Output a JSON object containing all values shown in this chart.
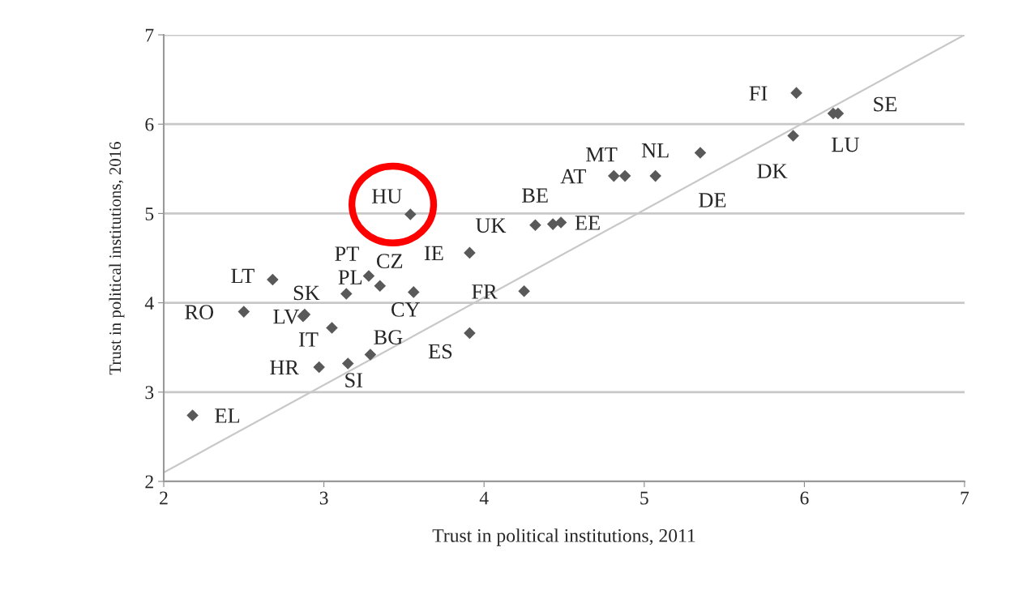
{
  "chart_data": {
    "type": "scatter",
    "xlabel": "Trust in political institutions, 2011",
    "ylabel": "Trust in political institutions, 2016",
    "xlim": [
      2,
      7
    ],
    "ylim": [
      2,
      7
    ],
    "xticks": [
      2,
      3,
      4,
      5,
      6,
      7
    ],
    "yticks": [
      2,
      3,
      4,
      5,
      6,
      7
    ],
    "grid": "y",
    "series": [
      {
        "marker": "diamond",
        "color": "#595959",
        "x": [
          2.18,
          2.5,
          2.68,
          2.88,
          2.87,
          3.05,
          2.97,
          3.15,
          3.29,
          3.14,
          3.28,
          3.35,
          3.56,
          3.54,
          3.91,
          3.91,
          4.25,
          4.32,
          4.43,
          4.48,
          4.81,
          4.88,
          5.07,
          5.35,
          5.93,
          5.95,
          6.18,
          6.21
        ],
        "values": [
          2.74,
          3.9,
          4.26,
          3.87,
          3.85,
          3.72,
          3.28,
          3.32,
          3.42,
          4.1,
          4.3,
          4.19,
          4.12,
          4.99,
          4.56,
          3.66,
          4.13,
          4.87,
          4.88,
          4.9,
          5.42,
          5.42,
          5.42,
          5.68,
          5.87,
          6.35,
          6.12,
          6.12
        ]
      },
      {
        "type": "line",
        "color": "#c8c8c8",
        "x": [
          2,
          7
        ],
        "values": [
          2.1,
          7.0
        ]
      }
    ],
    "annotations": [
      {
        "text": "EL",
        "x": 2.18,
        "y": 2.74
      },
      {
        "text": "RO",
        "x": 2.5,
        "y": 3.9
      },
      {
        "text": "LT",
        "x": 2.68,
        "y": 4.26
      },
      {
        "text": "SK",
        "x": 2.88,
        "y": 3.87
      },
      {
        "text": "LV",
        "x": 2.87,
        "y": 3.85
      },
      {
        "text": "IT",
        "x": 3.05,
        "y": 3.72
      },
      {
        "text": "HR",
        "x": 2.97,
        "y": 3.28
      },
      {
        "text": "SI",
        "x": 3.15,
        "y": 3.32
      },
      {
        "text": "BG",
        "x": 3.29,
        "y": 3.42
      },
      {
        "text": "PL",
        "x": 3.14,
        "y": 4.1
      },
      {
        "text": "PT",
        "x": 3.28,
        "y": 4.3
      },
      {
        "text": "CZ",
        "x": 3.35,
        "y": 4.19
      },
      {
        "text": "CY",
        "x": 3.56,
        "y": 4.12
      },
      {
        "text": "HU",
        "x": 3.54,
        "y": 4.99
      },
      {
        "text": "IE",
        "x": 3.91,
        "y": 4.56
      },
      {
        "text": "ES",
        "x": 3.91,
        "y": 3.66
      },
      {
        "text": "FR",
        "x": 4.25,
        "y": 4.13
      },
      {
        "text": "UK",
        "x": 4.32,
        "y": 4.87
      },
      {
        "text": "BE",
        "x": 4.43,
        "y": 4.88
      },
      {
        "text": "EE",
        "x": 4.48,
        "y": 4.9
      },
      {
        "text": "AT",
        "x": 4.81,
        "y": 5.42
      },
      {
        "text": "MT",
        "x": 4.88,
        "y": 5.42
      },
      {
        "text": "NL",
        "x": 5.07,
        "y": 5.42
      },
      {
        "text": "DE",
        "x": 5.35,
        "y": 5.68
      },
      {
        "text": "DK",
        "x": 5.93,
        "y": 5.87
      },
      {
        "text": "FI",
        "x": 5.95,
        "y": 6.35
      },
      {
        "text": "LU",
        "x": 6.18,
        "y": 6.12
      },
      {
        "text": "SE",
        "x": 6.21,
        "y": 6.12
      }
    ]
  }
}
